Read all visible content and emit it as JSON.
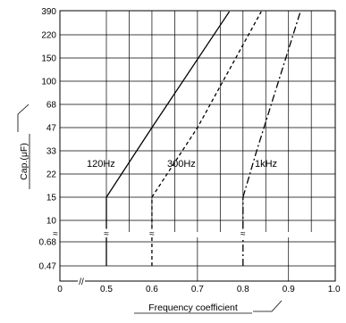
{
  "chart_data": {
    "type": "line",
    "xlabel": "Frequency coefficient",
    "ylabel": "Cap.(μF)",
    "x_ticks": [
      "0",
      "0.5",
      "0.6",
      "0.7",
      "0.8",
      "0.9",
      "1.0"
    ],
    "y_ticks": [
      "390",
      "220",
      "150",
      "100",
      "68",
      "47",
      "33",
      "22",
      "15",
      "10",
      "0.68",
      "0.47"
    ],
    "series": [
      {
        "name": "120Hz",
        "style": "solid",
        "points": [
          {
            "x": 0.5,
            "y": 0.47
          },
          {
            "x": 0.5,
            "y": 15
          },
          {
            "x": 0.6,
            "y": 47
          },
          {
            "x": 0.77,
            "y": 390
          }
        ]
      },
      {
        "name": "300Hz",
        "style": "dashed",
        "points": [
          {
            "x": 0.6,
            "y": 0.47
          },
          {
            "x": 0.6,
            "y": 15
          },
          {
            "x": 0.7,
            "y": 47
          },
          {
            "x": 0.84,
            "y": 390
          }
        ]
      },
      {
        "name": "1kHz",
        "style": "dashdot",
        "points": [
          {
            "x": 0.8,
            "y": 0.47
          },
          {
            "x": 0.8,
            "y": 15
          },
          {
            "x": 0.83,
            "y": 33
          },
          {
            "x": 0.926,
            "y": 390
          }
        ]
      }
    ],
    "grid": true,
    "break_symbol": "≈",
    "axis_break_symbol": "//"
  }
}
